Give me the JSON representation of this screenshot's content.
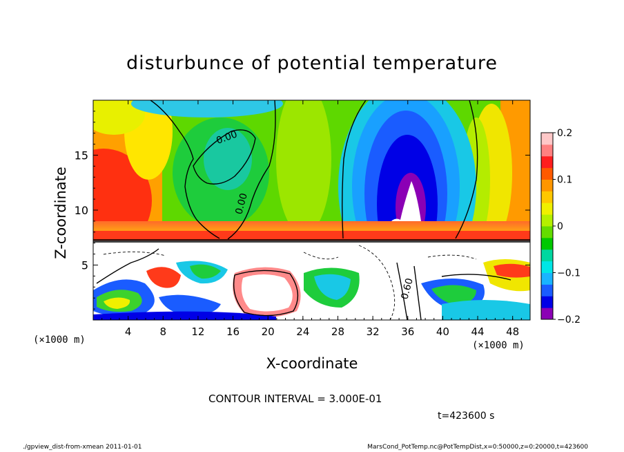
{
  "chart_data": {
    "type": "heatmap",
    "title": "disturbunce of potential temperature",
    "xlabel": "X-coordinate",
    "ylabel": "Z-coordinate",
    "x_unit": "(×1000 m)",
    "y_unit": "(×1000 m)",
    "xlim": [
      0,
      50
    ],
    "ylim": [
      0,
      20
    ],
    "x_ticks": [
      4,
      8,
      12,
      16,
      20,
      24,
      28,
      32,
      36,
      40,
      44,
      48
    ],
    "y_ticks": [
      5,
      10,
      15
    ],
    "colorbar": {
      "range": [
        -0.2,
        0.2
      ],
      "ticks": [
        "0.2",
        "0.1",
        "0",
        "−0.1",
        "−0.2"
      ],
      "tick_values": [
        0.2,
        0.1,
        0,
        -0.1,
        -0.2
      ],
      "colors": [
        "#8b00b5",
        "#0000e6",
        "#1a5cff",
        "#19b4ff",
        "#00e6e6",
        "#00d7a0",
        "#00c800",
        "#64dc00",
        "#b4f000",
        "#f0f000",
        "#ffc800",
        "#ff9600",
        "#ff5a00",
        "#ff1e1e",
        "#ff8080",
        "#ffc8c8"
      ]
    },
    "contour_labels": [
      "0.00",
      "0.00",
      "0.60"
    ],
    "contour_interval": "CONTOUR INTERVAL = 3.000E-01",
    "time": "t=423600 s"
  },
  "footer": {
    "left": "./gpview_dist-from-xmean  2011-01-01",
    "right": "MarsCond_PotTemp.nc@PotTempDist,x=0:50000,z=0:20000,t=423600"
  }
}
